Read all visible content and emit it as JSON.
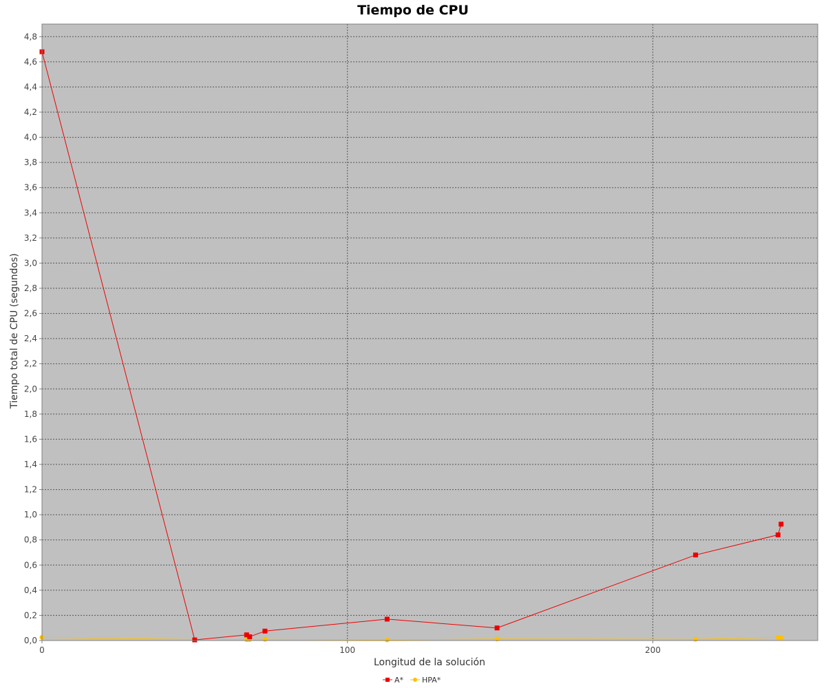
{
  "chart_data": {
    "type": "line",
    "title": "Tiempo de CPU",
    "xlabel": "Longitud de la solución",
    "ylabel": "Tiempo total de CPU (segundos)",
    "xlim": [
      0,
      254
    ],
    "ylim": [
      0,
      4.9
    ],
    "x_ticks": [
      0,
      100,
      200
    ],
    "y_ticks": [
      "0,0",
      "0,2",
      "0,4",
      "0,6",
      "0,8",
      "1,0",
      "1,2",
      "1,4",
      "1,6",
      "1,8",
      "2,0",
      "2,2",
      "2,4",
      "2,6",
      "2,8",
      "3,0",
      "3,2",
      "3,4",
      "3,6",
      "3,8",
      "4,0",
      "4,2",
      "4,4",
      "4,6",
      "4,8"
    ],
    "grid": true,
    "legend_position": "bottom-center",
    "colors": {
      "plot_background": "#c0c0c0",
      "grid": "#555555",
      "a_star": "#ee0000",
      "hpa_star": "#ffc000"
    },
    "series": [
      {
        "name": "A*",
        "marker": "square",
        "color": "#ee0000",
        "points": [
          [
            0,
            4.68
          ],
          [
            50,
            0.005
          ],
          [
            67,
            0.045
          ],
          [
            68,
            0.03
          ],
          [
            73,
            0.075
          ],
          [
            113,
            0.17
          ],
          [
            149,
            0.1
          ],
          [
            214,
            0.68
          ],
          [
            241,
            0.84
          ],
          [
            242,
            0.925
          ]
        ]
      },
      {
        "name": "HPA*",
        "marker": "circle",
        "color": "#ffc000",
        "points": [
          [
            0,
            0.025
          ],
          [
            50,
            0.008
          ],
          [
            67,
            0.008
          ],
          [
            68,
            0.008
          ],
          [
            73,
            0.01
          ],
          [
            113,
            0.005
          ],
          [
            149,
            0.012
          ],
          [
            214,
            0.01
          ],
          [
            241,
            0.025
          ],
          [
            242,
            0.02
          ]
        ]
      }
    ]
  }
}
